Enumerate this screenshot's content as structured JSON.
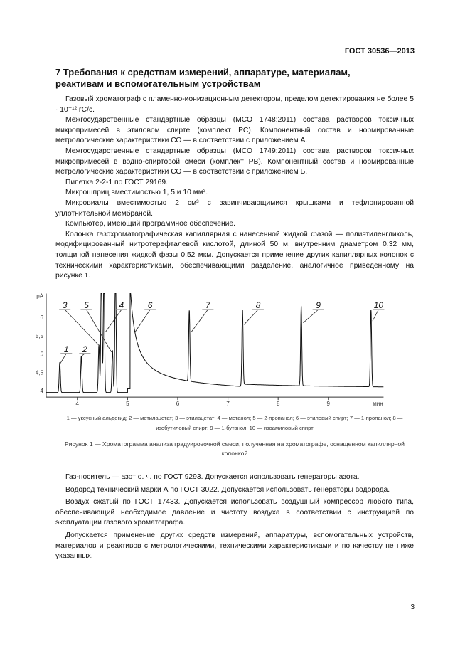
{
  "header": {
    "doc_code": "ГОСТ 30536—2013"
  },
  "section": {
    "title": "7 Требования к средствам измерений, аппаратуре, материалам, реактивам и вспомогательным устройствам"
  },
  "paragraphs": [
    "Газовый хроматограф с пламенно-ионизационным детектором, пределом детектирования не более 5 · 10⁻¹² гС/с.",
    "Межгосударственные стандартные образцы (МСО 1748:2011) состава растворов токсичных микропримесей в этиловом спирте (комплект РС). Компонентный состав и нормированные метрологические характеристики СО — в соответствии с приложением А.",
    "Межгосударственные стандартные образцы (МСО 1749:2011) состава растворов токсичных микропримесей в водно-спиртовой смеси (комплект РВ). Компонентный состав и нормированные метрологические характеристики СО — в соответствии с приложением Б.",
    "Пипетка 2-2-1 по ГОСТ 29169.",
    "Микрошприц вместимостью 1, 5 и 10 мм³.",
    "Микровиалы вместимостью 2 см³ с завинчивающимися крышками и тефлонированной уплотнительной мембраной.",
    "Компьютер, имеющий программное обеспечение.",
    "Колонка газохроматографическая капиллярная с нанесенной жидкой фазой — полиэтиленгликоль, модифицированный нитротерефталевой кислотой, длиной 50 м, внутренним диаметром 0,32 мм, толщиной нанесения жидкой фазы 0,52 мкм. Допускается применение других капиллярных колонок с техническими характеристиками, обеспечивающими разделение, аналогичное приведенному на рисунке 1."
  ],
  "figure": {
    "legend": "1 — уксусный альдегид; 2 — метилацетат; 3 — этилацетат; 4 — метанол; 5 — 2-пропанол; 6 — этиловый спирт; 7 — 1-пропанол; 8 — изобутиловый спирт; 9 — 1-бутанол; 10 — изоамиловый спирт",
    "caption": "Рисунок 1 — Хроматограмма анализа градуировочной смеси, полученная на хроматографе, оснащенном капиллярной колонкой"
  },
  "chart_data": {
    "type": "line",
    "ylabel": "pA",
    "xlabel": "мин",
    "xlim": [
      3.38,
      10.1
    ],
    "ylim": [
      3.9,
      6.65
    ],
    "xticks": [
      "4",
      "5",
      "6",
      "7",
      "8",
      "9"
    ],
    "yticks": [
      "4",
      "4,5",
      "5",
      "5,5",
      "6"
    ],
    "grid": false,
    "peaks": [
      {
        "label": "1",
        "x": 3.65,
        "y": 4.82
      },
      {
        "label": "2",
        "x": 4.08,
        "y": 5.0
      },
      {
        "label": "3",
        "x": 4.43,
        "y": 5.3
      },
      {
        "label": "",
        "x": 4.48,
        "y": 7.5
      },
      {
        "label": "4",
        "x": 4.53,
        "y": 7.5
      },
      {
        "label": "5",
        "x": 4.7,
        "y": 5.15
      },
      {
        "label": "",
        "x": 4.76,
        "y": 7.5
      },
      {
        "label": "6",
        "x": 5.05,
        "y": 6.65
      },
      {
        "label": "7",
        "x": 6.23,
        "y": 5.93
      },
      {
        "label": "8",
        "x": 7.29,
        "y": 6.1
      },
      {
        "label": "9",
        "x": 8.46,
        "y": 6.18
      },
      {
        "label": "10",
        "x": 9.85,
        "y": 6.1
      }
    ],
    "annotations": [
      {
        "text": "1",
        "x": 3.78,
        "y": 5.05,
        "tx": 3.65,
        "ty": 4.72
      },
      {
        "text": "2",
        "x": 4.15,
        "y": 5.05,
        "tx": 4.09,
        "ty": 4.95
      },
      {
        "text": "3",
        "x": 3.75,
        "y": 6.25,
        "tx": 4.42,
        "ty": 5.25
      },
      {
        "text": "5",
        "x": 4.18,
        "y": 6.25,
        "tx": 4.68,
        "ty": 5.05
      },
      {
        "text": "4",
        "x": 4.88,
        "y": 6.25,
        "tx": 4.56,
        "ty": 5.6
      },
      {
        "text": "6",
        "x": 5.45,
        "y": 6.25,
        "tx": 5.15,
        "ty": 5.6
      },
      {
        "text": "7",
        "x": 6.6,
        "y": 6.25,
        "tx": 6.27,
        "ty": 5.6
      },
      {
        "text": "8",
        "x": 7.6,
        "y": 6.25,
        "tx": 7.32,
        "ty": 5.8
      },
      {
        "text": "9",
        "x": 8.8,
        "y": 6.25,
        "tx": 8.5,
        "ty": 5.85
      },
      {
        "text": "10",
        "x": 10.0,
        "y": 6.25,
        "tx": 9.88,
        "ty": 5.9
      }
    ]
  },
  "paragraphs2": [
    "Газ-носитель — азот о. ч. по ГОСТ 9293. Допускается использовать генераторы азота.",
    "Водород технический марки А по ГОСТ 3022. Допускается использовать генераторы водорода.",
    "Воздух сжатый по ГОСТ 17433. Допускается использовать воздушный компрессор любого типа, обеспечивающий необходимое давление и чистоту воздуха в соответствии с инструкцией по эксплуатации газового хроматографа.",
    "Допускается применение других средств измерений, аппаратуры, вспомогательных устройств, материалов и реактивов с метрологическими, техническими характеристиками и по качеству не ниже указанных."
  ],
  "footer": {
    "page_number": "3"
  }
}
